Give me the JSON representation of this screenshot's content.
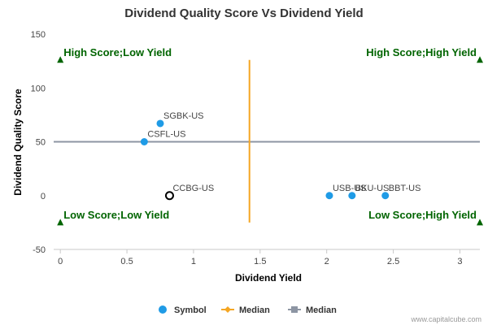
{
  "chart_data": {
    "type": "scatter",
    "title": "Dividend Quality Score Vs Dividend Yield",
    "xlabel": "Dividend Yield",
    "ylabel": "Dividend Quality Score",
    "xlim": [
      -0.05,
      3.15
    ],
    "ylim": [
      -50,
      150
    ],
    "x_ticks": [
      0,
      0.5,
      1,
      1.5,
      2,
      2.5,
      3
    ],
    "x_tick_labels": [
      "0",
      "0.5",
      "1",
      "1.5",
      "2",
      "2.5",
      "3"
    ],
    "y_ticks": [
      -50,
      0,
      50,
      100,
      150
    ],
    "y_tick_labels": [
      "-50",
      "0",
      "50",
      "100",
      "150"
    ],
    "grid": false,
    "legend_position": "bottom",
    "points": [
      {
        "label": "SGBK-US",
        "x": 0.75,
        "y": 67,
        "highlight": false
      },
      {
        "label": "CSFL-US",
        "x": 0.63,
        "y": 50,
        "highlight": false
      },
      {
        "label": "CCBG-US",
        "x": 0.82,
        "y": 0,
        "highlight": true
      },
      {
        "label": "USB-US",
        "x": 2.02,
        "y": 0,
        "highlight": false
      },
      {
        "label": "BKU-US",
        "x": 2.19,
        "y": 0,
        "highlight": false
      },
      {
        "label": "BBT-US",
        "x": 2.44,
        "y": 0,
        "highlight": false
      }
    ],
    "median_x": 1.42,
    "median_x_range": [
      -25,
      126
    ],
    "median_y": 50,
    "median_y_range": [
      -0.05,
      3.15
    ],
    "quadrants": [
      {
        "text": "High Score;Low Yield",
        "marker_x": 0,
        "marker_y": 126,
        "align": "left"
      },
      {
        "text": "High Score;High Yield",
        "marker_x": 3.15,
        "marker_y": 126,
        "align": "right"
      },
      {
        "text": "Low Score;Low Yield",
        "marker_x": 0,
        "marker_y": -25,
        "align": "left"
      },
      {
        "text": "Low Score;High Yield",
        "marker_x": 3.15,
        "marker_y": -25,
        "align": "right"
      }
    ],
    "legend": [
      {
        "name": "Symbol",
        "kind": "dot",
        "color": "#1f9be6"
      },
      {
        "name": "Median",
        "kind": "line-diamond",
        "color": "#f5a623"
      },
      {
        "name": "Median",
        "kind": "line-square",
        "color": "#8d95a3"
      }
    ],
    "colors": {
      "point": "#1f9be6",
      "highlight_stroke": "#000000",
      "median_x": "#f5a623",
      "median_y": "#8d95a3",
      "quadrant": "#006400",
      "axis": "#c8c8c8"
    }
  },
  "credit": "www.capitalcube.com"
}
